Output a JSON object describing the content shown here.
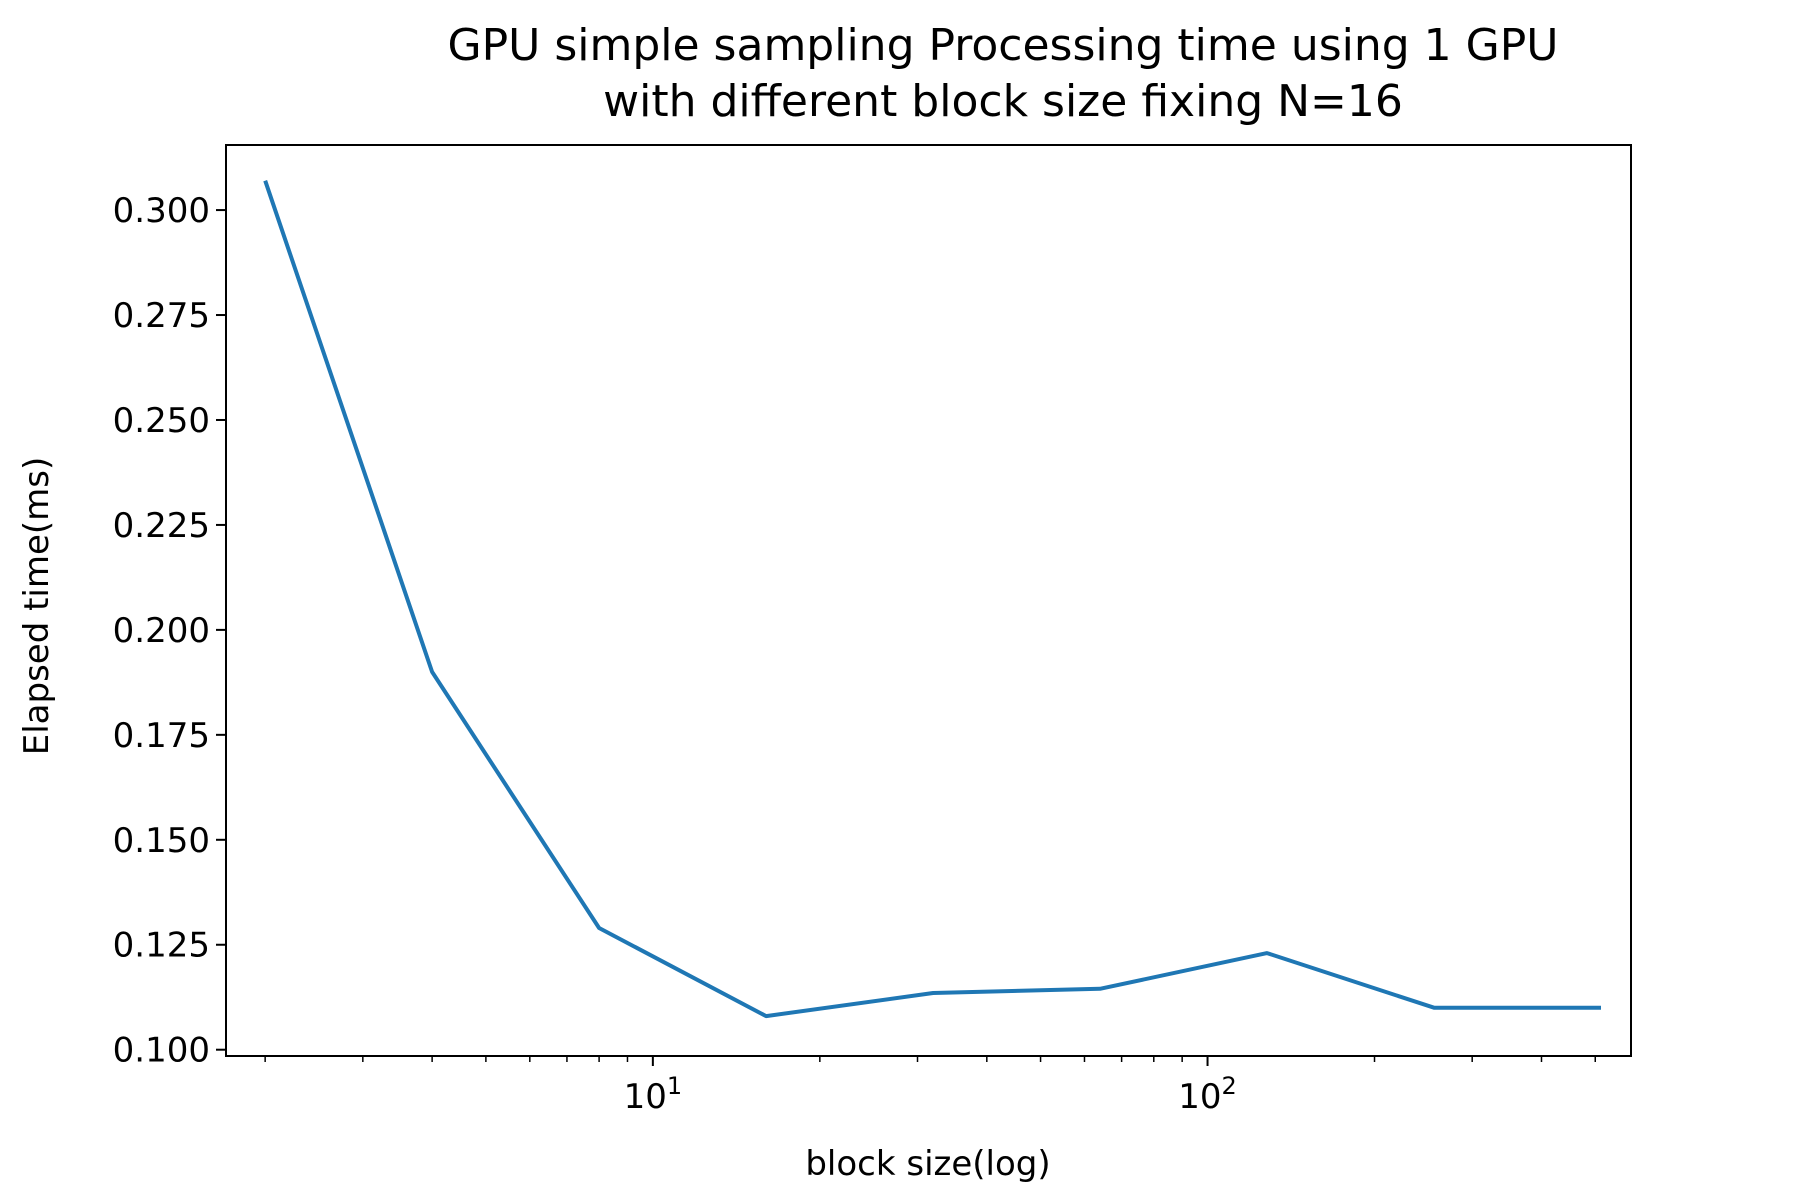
{
  "chart_data": {
    "type": "line",
    "title": "GPU simple sampling Processing time using 1 GPU",
    "subtitle": "with different block size fixing N=16",
    "xlabel": "block size(log)",
    "ylabel": "Elapsed time(ms)",
    "xscale": "log",
    "xlim": [
      1.7,
      580
    ],
    "ylim": [
      0.0985,
      0.3155
    ],
    "x_major_ticks": [
      {
        "value": 10,
        "base": "10",
        "exp": "1"
      },
      {
        "value": 100,
        "base": "10",
        "exp": "2"
      }
    ],
    "y_ticks": [
      {
        "value": 0.1,
        "label": "0.100"
      },
      {
        "value": 0.125,
        "label": "0.125"
      },
      {
        "value": 0.15,
        "label": "0.150"
      },
      {
        "value": 0.175,
        "label": "0.175"
      },
      {
        "value": 0.2,
        "label": "0.200"
      },
      {
        "value": 0.225,
        "label": "0.225"
      },
      {
        "value": 0.25,
        "label": "0.250"
      },
      {
        "value": 0.275,
        "label": "0.275"
      },
      {
        "value": 0.3,
        "label": "0.300"
      }
    ],
    "grid": false,
    "line_color": "#1f77b4",
    "series": [
      {
        "x": [
          2,
          4,
          8,
          16,
          32,
          64,
          128,
          256,
          512
        ],
        "y": [
          0.307,
          0.19,
          0.129,
          0.108,
          0.1135,
          0.1145,
          0.123,
          0.11,
          0.11
        ]
      }
    ]
  }
}
